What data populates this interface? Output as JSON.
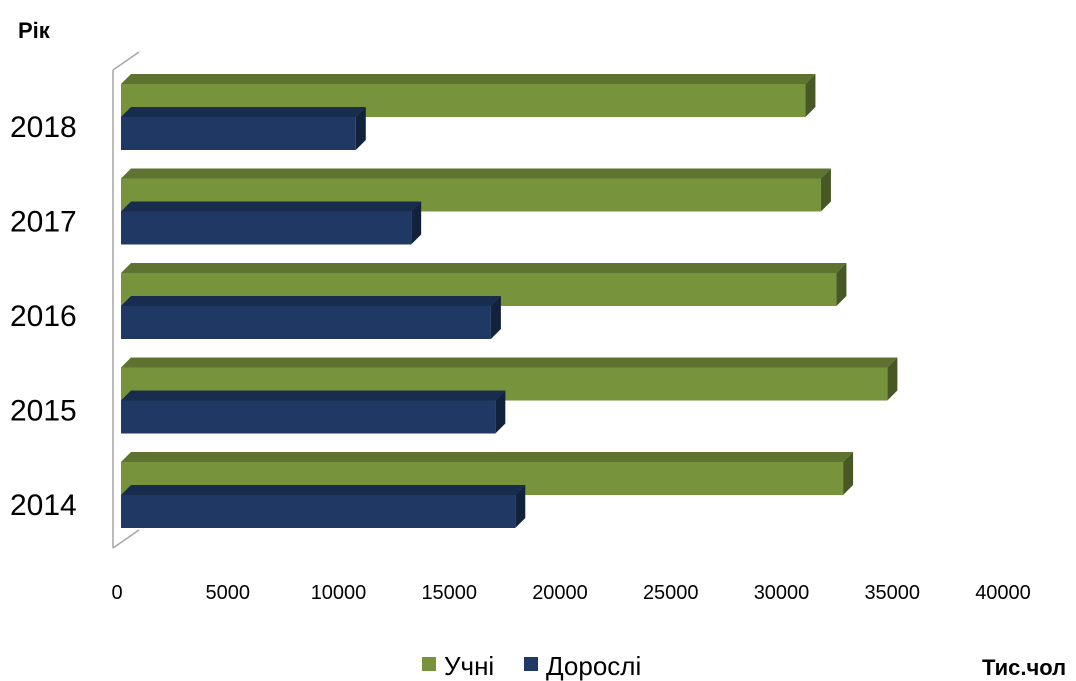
{
  "chart_data": {
    "type": "bar",
    "orientation": "horizontal",
    "style": "3d",
    "categories": [
      "2018",
      "2017",
      "2016",
      "2015",
      "2014"
    ],
    "series": [
      {
        "name": "Учні",
        "color": "#77933C",
        "values": [
          30900,
          31600,
          32300,
          34600,
          32600
        ]
      },
      {
        "name": "Дорослі",
        "color": "#1F3864",
        "values": [
          10600,
          13100,
          16700,
          16900,
          17800
        ]
      }
    ],
    "xlabel": "Тис.чол",
    "ylabel": "Рік",
    "xticks": [
      0,
      5000,
      10000,
      15000,
      20000,
      25000,
      30000,
      35000,
      40000
    ],
    "xlim": [
      0,
      40000
    ],
    "grid": false,
    "legend": "bottom"
  }
}
